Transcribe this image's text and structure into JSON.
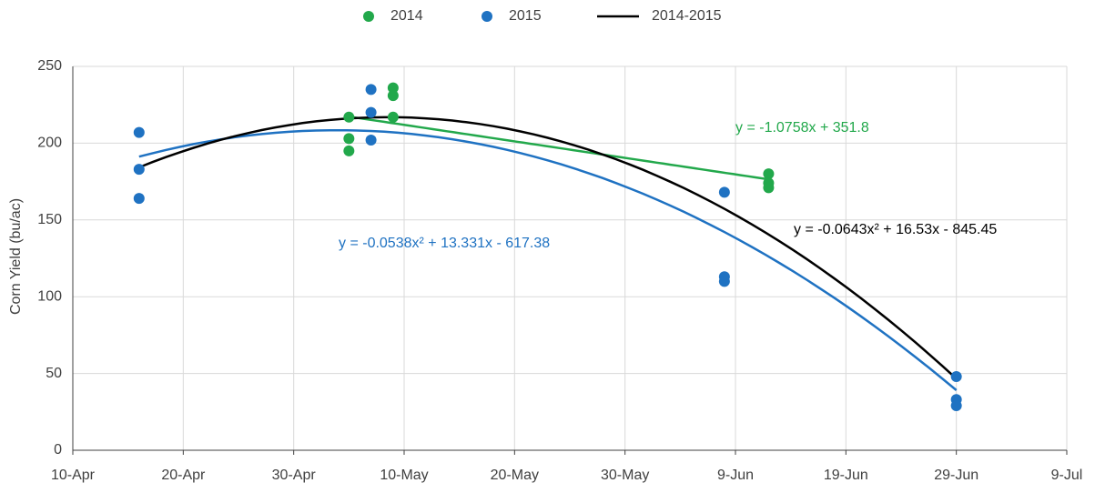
{
  "chart_data": {
    "type": "scatter",
    "y_label": "Corn Yield (bu/ac)",
    "xlim": [
      100,
      190
    ],
    "xticks": [
      {
        "value": 100,
        "label": "10-Apr"
      },
      {
        "value": 110,
        "label": "20-Apr"
      },
      {
        "value": 120,
        "label": "30-Apr"
      },
      {
        "value": 130,
        "label": "10-May"
      },
      {
        "value": 140,
        "label": "20-May"
      },
      {
        "value": 150,
        "label": "30-May"
      },
      {
        "value": 160,
        "label": "9-Jun"
      },
      {
        "value": 170,
        "label": "19-Jun"
      },
      {
        "value": 180,
        "label": "29-Jun"
      },
      {
        "value": 190,
        "label": "9-Jul"
      }
    ],
    "ylim": [
      0,
      250
    ],
    "yticks": [
      0,
      50,
      100,
      150,
      200,
      250
    ],
    "grid": true,
    "legend": "top",
    "series": [
      {
        "name": "2014",
        "color": "#22a84b",
        "x": [
          125,
          125,
          125,
          129,
          129,
          129,
          163,
          163,
          163
        ],
        "values": [
          217,
          203,
          195,
          236,
          231,
          217,
          180,
          174,
          171
        ]
      },
      {
        "name": "2015",
        "color": "#1f72c2",
        "x": [
          106,
          106,
          106,
          127,
          127,
          127,
          159,
          159,
          159,
          180,
          180,
          180
        ],
        "values": [
          207,
          183,
          164,
          235,
          220,
          202,
          168,
          113,
          110,
          48,
          33,
          29
        ]
      }
    ],
    "trendlines": [
      {
        "color": "#22a84b",
        "coefficients": [
          0,
          -1.0758,
          351.8
        ],
        "x_range": [
          125,
          163
        ],
        "label": "y = -1.0758x + 351.8"
      },
      {
        "color": "#1f72c2",
        "coefficients": [
          -0.0538,
          13.331,
          -617.38
        ],
        "x_range": [
          106,
          180
        ],
        "label": "y = -0.0538x² + 13.331x  - 617.38"
      },
      {
        "name": "2014-2015",
        "color": "#000000",
        "coefficients": [
          -0.0643,
          16.53,
          -845.45
        ],
        "x_range": [
          106,
          180
        ],
        "label": "y = -0.0643x² + 16.53x - 845.45"
      }
    ]
  }
}
